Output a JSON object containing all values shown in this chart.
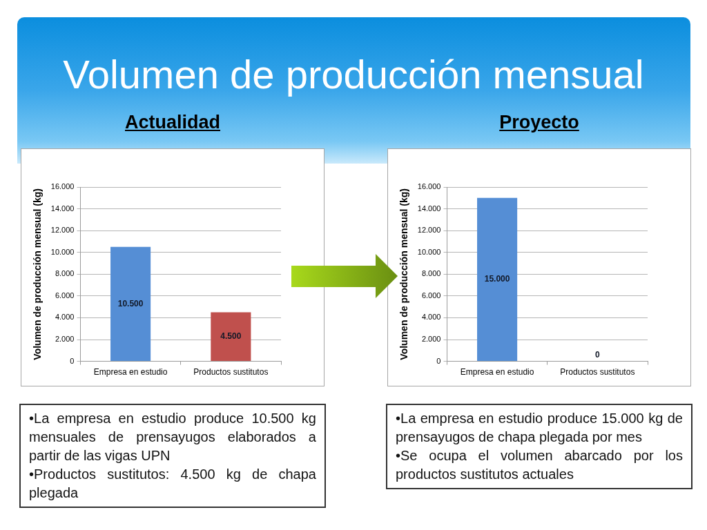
{
  "chart_data": [
    {
      "type": "bar",
      "title": "Volumen de producción mensual",
      "subtitle": "Actualidad",
      "ylabel": "Volumen de producción mensual (kg)",
      "categories": [
        "Empresa en estudio",
        "Productos sustitutos"
      ],
      "values": [
        10500,
        4500
      ],
      "colors": [
        "#558ed5",
        "#c0504d"
      ],
      "value_labels": [
        "10.500",
        "4.500"
      ],
      "ylim": [
        0,
        16000
      ],
      "yticks": [
        0,
        {
          "value": 2000,
          "label": "2.000"
        },
        {
          "value": 4000,
          "label": "4.000"
        },
        {
          "value": 6000,
          "label": "6.000"
        },
        {
          "value": 8000,
          "label": "8.000"
        },
        {
          "value": 10000,
          "label": "10.000"
        },
        {
          "value": 12000,
          "label": "12.000"
        },
        {
          "value": 14000,
          "label": "14.000"
        },
        {
          "value": 16000,
          "label": "16.000"
        }
      ],
      "grid": "y",
      "annotations": [
        "•La empresa en estudio produce 10.500 kg mensuales de prensayugos elaborados a partir de las vigas UPN",
        "•Productos sustitutos: 4.500 kg de chapa plegada"
      ]
    },
    {
      "type": "bar",
      "subtitle": "Proyecto",
      "ylabel": "Volumen de producción mensual (kg)",
      "categories": [
        "Empresa en estudio",
        "Productos sustitutos"
      ],
      "values": [
        15000,
        0
      ],
      "colors": [
        "#558ed5",
        "#c0504d"
      ],
      "value_labels": [
        "15.000",
        "0"
      ],
      "ylim": [
        0,
        16000
      ],
      "yticks": [
        0,
        {
          "value": 2000,
          "label": "2.000"
        },
        {
          "value": 4000,
          "label": "4.000"
        },
        {
          "value": 6000,
          "label": "6.000"
        },
        {
          "value": 8000,
          "label": "8.000"
        },
        {
          "value": 10000,
          "label": "10.000"
        },
        {
          "value": 12000,
          "label": "12.000"
        },
        {
          "value": 14000,
          "label": "14.000"
        },
        {
          "value": 16000,
          "label": "16.000"
        }
      ],
      "grid": "y",
      "annotations": [
        "•La empresa en estudio produce 15.000 kg de prensayugos de chapa plegada por mes",
        "•Se ocupa el volumen abarcado por los productos sustitutos actuales"
      ]
    }
  ]
}
